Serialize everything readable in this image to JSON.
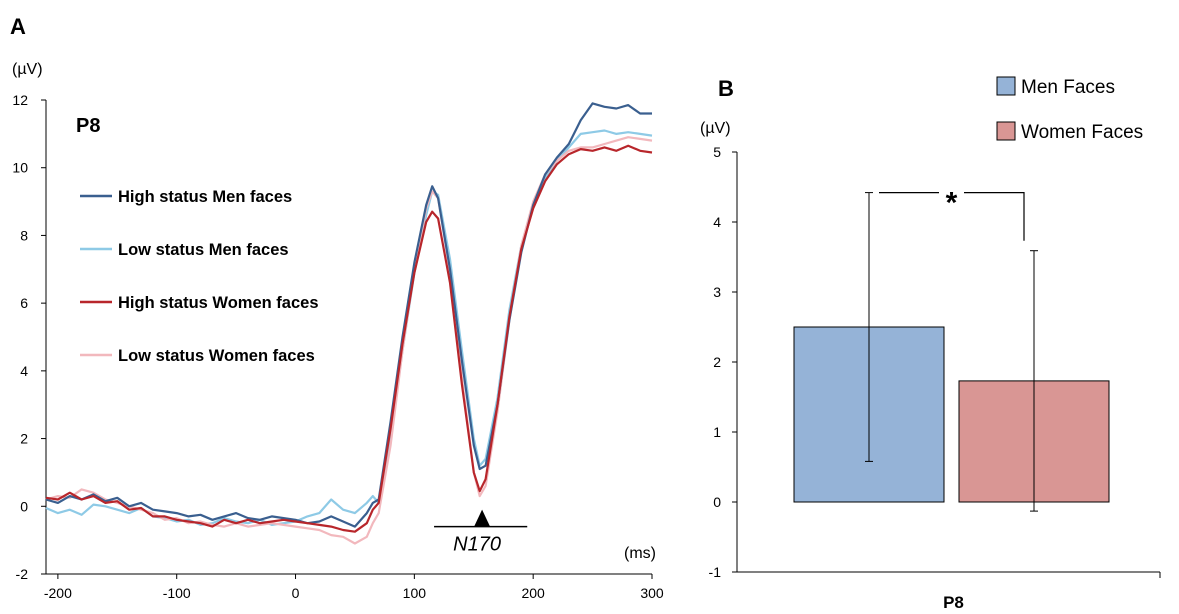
{
  "figure": {
    "panel_a_letter": "A",
    "panel_b_letter": "B"
  },
  "chart_data": [
    {
      "type": "line",
      "panel": "A",
      "title": "P8",
      "ylabel": "(µV)",
      "xlabel": "(ms)",
      "xlim": [
        -210,
        300
      ],
      "ylim": [
        -2,
        12
      ],
      "xticks": [
        -200,
        -100,
        0,
        100,
        200,
        300
      ],
      "yticks": [
        -2,
        0,
        2,
        4,
        6,
        8,
        10,
        12
      ],
      "grid": false,
      "legend": "top-left",
      "annotation": {
        "label": "N170",
        "marker_x": 157,
        "marker_y": -0.35,
        "range": [
          125,
          195
        ]
      },
      "series": [
        {
          "name": "High status Men faces",
          "color": "#3a5f8f",
          "points": [
            [
              -210,
              0.2
            ],
            [
              -200,
              0.1
            ],
            [
              -190,
              0.3
            ],
            [
              -180,
              0.2
            ],
            [
              -170,
              0.35
            ],
            [
              -160,
              0.15
            ],
            [
              -150,
              0.25
            ],
            [
              -140,
              0.0
            ],
            [
              -130,
              0.1
            ],
            [
              -120,
              -0.1
            ],
            [
              -110,
              -0.15
            ],
            [
              -100,
              -0.2
            ],
            [
              -90,
              -0.3
            ],
            [
              -80,
              -0.25
            ],
            [
              -70,
              -0.4
            ],
            [
              -60,
              -0.3
            ],
            [
              -50,
              -0.2
            ],
            [
              -40,
              -0.35
            ],
            [
              -30,
              -0.4
            ],
            [
              -20,
              -0.3
            ],
            [
              -10,
              -0.35
            ],
            [
              0,
              -0.4
            ],
            [
              10,
              -0.5
            ],
            [
              20,
              -0.45
            ],
            [
              30,
              -0.3
            ],
            [
              40,
              -0.45
            ],
            [
              50,
              -0.6
            ],
            [
              60,
              -0.2
            ],
            [
              65,
              0.1
            ],
            [
              70,
              0.2
            ],
            [
              80,
              2.5
            ],
            [
              90,
              5.0
            ],
            [
              100,
              7.2
            ],
            [
              110,
              8.9
            ],
            [
              115,
              9.45
            ],
            [
              120,
              9.1
            ],
            [
              130,
              7.0
            ],
            [
              140,
              4.3
            ],
            [
              150,
              1.8
            ],
            [
              155,
              1.1
            ],
            [
              160,
              1.2
            ],
            [
              170,
              3.0
            ],
            [
              180,
              5.5
            ],
            [
              190,
              7.5
            ],
            [
              200,
              8.9
            ],
            [
              210,
              9.8
            ],
            [
              220,
              10.3
            ],
            [
              230,
              10.7
            ],
            [
              240,
              11.4
            ],
            [
              250,
              11.9
            ],
            [
              260,
              11.8
            ],
            [
              270,
              11.75
            ],
            [
              280,
              11.85
            ],
            [
              290,
              11.6
            ],
            [
              300,
              11.6
            ]
          ]
        },
        {
          "name": "Low status Men faces",
          "color": "#8ecae6",
          "points": [
            [
              -210,
              -0.05
            ],
            [
              -200,
              -0.2
            ],
            [
              -190,
              -0.1
            ],
            [
              -180,
              -0.25
            ],
            [
              -170,
              0.05
            ],
            [
              -160,
              0.0
            ],
            [
              -150,
              -0.1
            ],
            [
              -140,
              -0.2
            ],
            [
              -130,
              -0.05
            ],
            [
              -120,
              -0.3
            ],
            [
              -110,
              -0.35
            ],
            [
              -100,
              -0.45
            ],
            [
              -90,
              -0.4
            ],
            [
              -80,
              -0.55
            ],
            [
              -70,
              -0.5
            ],
            [
              -60,
              -0.35
            ],
            [
              -50,
              -0.45
            ],
            [
              -40,
              -0.5
            ],
            [
              -30,
              -0.4
            ],
            [
              -20,
              -0.55
            ],
            [
              -10,
              -0.5
            ],
            [
              0,
              -0.45
            ],
            [
              10,
              -0.3
            ],
            [
              20,
              -0.2
            ],
            [
              30,
              0.2
            ],
            [
              40,
              -0.1
            ],
            [
              50,
              -0.2
            ],
            [
              60,
              0.1
            ],
            [
              65,
              0.3
            ],
            [
              70,
              0.1
            ],
            [
              80,
              2.0
            ],
            [
              90,
              4.6
            ],
            [
              100,
              6.9
            ],
            [
              110,
              8.6
            ],
            [
              115,
              9.3
            ],
            [
              120,
              9.2
            ],
            [
              130,
              7.3
            ],
            [
              140,
              4.6
            ],
            [
              150,
              2.0
            ],
            [
              155,
              1.2
            ],
            [
              160,
              1.4
            ],
            [
              170,
              3.2
            ],
            [
              180,
              5.8
            ],
            [
              190,
              7.7
            ],
            [
              200,
              8.9
            ],
            [
              210,
              9.7
            ],
            [
              220,
              10.2
            ],
            [
              230,
              10.6
            ],
            [
              240,
              11.0
            ],
            [
              250,
              11.05
            ],
            [
              260,
              11.1
            ],
            [
              270,
              11.0
            ],
            [
              280,
              11.05
            ],
            [
              290,
              11.0
            ],
            [
              300,
              10.95
            ]
          ]
        },
        {
          "name": "High status Women faces",
          "color": "#b8262b",
          "points": [
            [
              -210,
              0.25
            ],
            [
              -200,
              0.2
            ],
            [
              -190,
              0.4
            ],
            [
              -180,
              0.2
            ],
            [
              -170,
              0.3
            ],
            [
              -160,
              0.1
            ],
            [
              -150,
              0.15
            ],
            [
              -140,
              -0.1
            ],
            [
              -130,
              -0.05
            ],
            [
              -120,
              -0.3
            ],
            [
              -110,
              -0.3
            ],
            [
              -100,
              -0.4
            ],
            [
              -90,
              -0.45
            ],
            [
              -80,
              -0.5
            ],
            [
              -70,
              -0.6
            ],
            [
              -60,
              -0.4
            ],
            [
              -50,
              -0.5
            ],
            [
              -40,
              -0.4
            ],
            [
              -30,
              -0.5
            ],
            [
              -20,
              -0.45
            ],
            [
              -10,
              -0.4
            ],
            [
              0,
              -0.45
            ],
            [
              10,
              -0.5
            ],
            [
              20,
              -0.55
            ],
            [
              30,
              -0.6
            ],
            [
              40,
              -0.7
            ],
            [
              50,
              -0.75
            ],
            [
              60,
              -0.5
            ],
            [
              65,
              -0.1
            ],
            [
              70,
              0.1
            ],
            [
              80,
              2.3
            ],
            [
              90,
              4.8
            ],
            [
              100,
              6.9
            ],
            [
              110,
              8.4
            ],
            [
              115,
              8.7
            ],
            [
              120,
              8.5
            ],
            [
              130,
              6.6
            ],
            [
              140,
              3.6
            ],
            [
              150,
              1.0
            ],
            [
              155,
              0.45
            ],
            [
              160,
              0.8
            ],
            [
              170,
              3.0
            ],
            [
              180,
              5.6
            ],
            [
              190,
              7.6
            ],
            [
              200,
              8.8
            ],
            [
              210,
              9.6
            ],
            [
              220,
              10.1
            ],
            [
              230,
              10.4
            ],
            [
              240,
              10.55
            ],
            [
              250,
              10.5
            ],
            [
              260,
              10.6
            ],
            [
              270,
              10.5
            ],
            [
              280,
              10.65
            ],
            [
              290,
              10.5
            ],
            [
              300,
              10.45
            ]
          ]
        },
        {
          "name": "Low status Women faces",
          "color": "#f2b8bd",
          "points": [
            [
              -210,
              0.2
            ],
            [
              -200,
              0.3
            ],
            [
              -190,
              0.25
            ],
            [
              -180,
              0.5
            ],
            [
              -170,
              0.4
            ],
            [
              -160,
              0.2
            ],
            [
              -150,
              0.1
            ],
            [
              -140,
              0.0
            ],
            [
              -130,
              -0.1
            ],
            [
              -120,
              -0.2
            ],
            [
              -110,
              -0.4
            ],
            [
              -100,
              -0.35
            ],
            [
              -90,
              -0.5
            ],
            [
              -80,
              -0.45
            ],
            [
              -70,
              -0.55
            ],
            [
              -60,
              -0.6
            ],
            [
              -50,
              -0.5
            ],
            [
              -40,
              -0.6
            ],
            [
              -30,
              -0.55
            ],
            [
              -20,
              -0.5
            ],
            [
              -10,
              -0.55
            ],
            [
              0,
              -0.6
            ],
            [
              10,
              -0.65
            ],
            [
              20,
              -0.7
            ],
            [
              30,
              -0.85
            ],
            [
              40,
              -0.9
            ],
            [
              50,
              -1.1
            ],
            [
              60,
              -0.9
            ],
            [
              65,
              -0.5
            ],
            [
              70,
              -0.2
            ],
            [
              80,
              1.8
            ],
            [
              90,
              4.6
            ],
            [
              100,
              7.0
            ],
            [
              110,
              8.8
            ],
            [
              115,
              9.3
            ],
            [
              120,
              9.1
            ],
            [
              130,
              6.9
            ],
            [
              140,
              3.8
            ],
            [
              150,
              1.0
            ],
            [
              155,
              0.3
            ],
            [
              160,
              0.6
            ],
            [
              170,
              2.8
            ],
            [
              180,
              5.5
            ],
            [
              190,
              7.7
            ],
            [
              200,
              9.0
            ],
            [
              210,
              9.8
            ],
            [
              220,
              10.2
            ],
            [
              230,
              10.5
            ],
            [
              240,
              10.6
            ],
            [
              250,
              10.6
            ],
            [
              260,
              10.7
            ],
            [
              270,
              10.8
            ],
            [
              280,
              10.9
            ],
            [
              290,
              10.85
            ],
            [
              300,
              10.8
            ]
          ]
        }
      ]
    },
    {
      "type": "bar",
      "panel": "B",
      "ylabel": "(µV)",
      "categories": [
        "P8"
      ],
      "ylim": [
        -1,
        5
      ],
      "yticks": [
        -1,
        0,
        1,
        2,
        3,
        4,
        5
      ],
      "grid": false,
      "legend": "top-right",
      "significance": "*",
      "series": [
        {
          "name": "Men Faces",
          "values": [
            2.5
          ],
          "error": [
            1.92
          ],
          "color": "#95b3d7"
        },
        {
          "name": "Women Faces",
          "values": [
            1.73
          ],
          "error": [
            1.86
          ],
          "color": "#d99694"
        }
      ]
    }
  ]
}
